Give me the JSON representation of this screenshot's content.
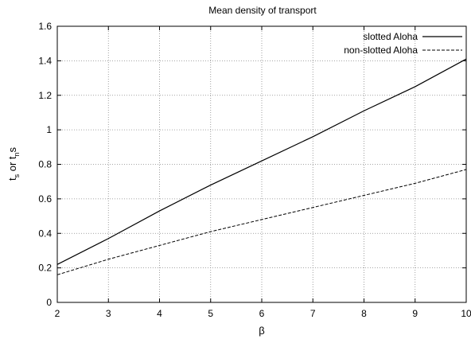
{
  "chart_data": {
    "type": "line",
    "title": "Mean density of transport",
    "xlabel": "β",
    "ylabel_main": "t",
    "ylabel_sub1": "s",
    "ylabel_mid": " or t",
    "ylabel_sub2": "n",
    "ylabel_tail": "s",
    "xlim": [
      2,
      10
    ],
    "ylim": [
      0,
      1.6
    ],
    "x_ticks": [
      2,
      3,
      4,
      5,
      6,
      7,
      8,
      9,
      10
    ],
    "y_ticks": [
      0,
      0.2,
      0.4,
      0.6,
      0.8,
      1,
      1.2,
      1.4,
      1.6
    ],
    "y_tick_labels": [
      "0",
      "0.2",
      "0.4",
      "0.6",
      "0.8",
      "1",
      "1.2",
      "1.4",
      "1.6"
    ],
    "grid": true,
    "legend_position": "top-right",
    "series": [
      {
        "name": "slotted Aloha",
        "style": "solid",
        "x": [
          2,
          3,
          4,
          5,
          6,
          7,
          8,
          9,
          10
        ],
        "values": [
          0.22,
          0.37,
          0.53,
          0.68,
          0.82,
          0.96,
          1.11,
          1.25,
          1.41
        ]
      },
      {
        "name": "non-slotted Aloha",
        "style": "dashed",
        "x": [
          2,
          3,
          4,
          5,
          6,
          7,
          8,
          9,
          10
        ],
        "values": [
          0.16,
          0.25,
          0.33,
          0.41,
          0.48,
          0.55,
          0.62,
          0.69,
          0.77
        ]
      }
    ]
  }
}
